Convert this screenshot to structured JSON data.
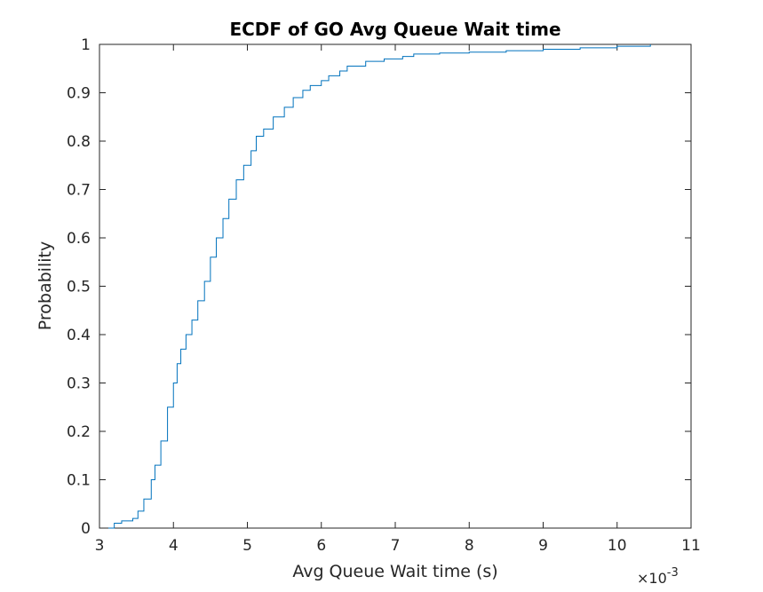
{
  "chart_data": {
    "type": "line",
    "title": "ECDF of GO Avg Queue Wait time",
    "xlabel": "Avg Queue Wait time (s)",
    "ylabel": "Probability",
    "x_exponent_label": "×10",
    "x_exponent_power": "-3",
    "xlim": [
      3,
      11
    ],
    "ylim": [
      0,
      1
    ],
    "xticks": [
      3,
      4,
      5,
      6,
      7,
      8,
      9,
      10,
      11
    ],
    "xtick_labels": [
      "3",
      "4",
      "5",
      "6",
      "7",
      "8",
      "9",
      "10",
      "11"
    ],
    "yticks": [
      0,
      0.1,
      0.2,
      0.3,
      0.4,
      0.5,
      0.6,
      0.7,
      0.8,
      0.9,
      1
    ],
    "ytick_labels": [
      "0",
      "0.1",
      "0.2",
      "0.3",
      "0.4",
      "0.5",
      "0.6",
      "0.7",
      "0.8",
      "0.9",
      "1"
    ],
    "grid": false,
    "line_color": "#0072BD",
    "series": [
      {
        "x": [
          3.12,
          3.2,
          3.3,
          3.45,
          3.52,
          3.6,
          3.7,
          3.75,
          3.83,
          3.92,
          4.0,
          4.05,
          4.1,
          4.17,
          4.25,
          4.33,
          4.42,
          4.5,
          4.58,
          4.67,
          4.75,
          4.85,
          4.95,
          5.05,
          5.12,
          5.22,
          5.35,
          5.5,
          5.62,
          5.75,
          5.85,
          6.0,
          6.1,
          6.25,
          6.35,
          6.6,
          6.85,
          7.1,
          7.25,
          7.6,
          8.0,
          8.5,
          9.0,
          9.5,
          10.0,
          10.45
        ],
        "y": [
          0.0,
          0.01,
          0.015,
          0.02,
          0.035,
          0.06,
          0.1,
          0.13,
          0.18,
          0.25,
          0.3,
          0.34,
          0.37,
          0.4,
          0.43,
          0.47,
          0.51,
          0.56,
          0.6,
          0.64,
          0.68,
          0.72,
          0.75,
          0.78,
          0.81,
          0.825,
          0.85,
          0.87,
          0.89,
          0.905,
          0.915,
          0.925,
          0.935,
          0.945,
          0.955,
          0.965,
          0.97,
          0.975,
          0.98,
          0.982,
          0.984,
          0.987,
          0.99,
          0.993,
          0.996,
          1.0
        ]
      }
    ]
  }
}
